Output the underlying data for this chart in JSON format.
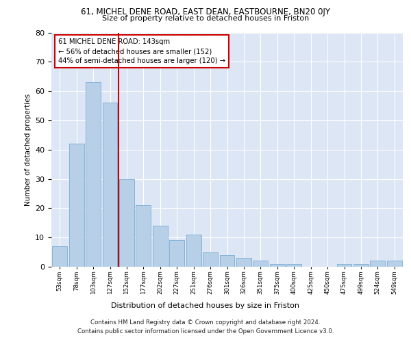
{
  "title1": "61, MICHEL DENE ROAD, EAST DEAN, EASTBOURNE, BN20 0JY",
  "title2": "Size of property relative to detached houses in Friston",
  "xlabel": "Distribution of detached houses by size in Friston",
  "ylabel": "Number of detached properties",
  "categories": [
    "53sqm",
    "78sqm",
    "103sqm",
    "127sqm",
    "152sqm",
    "177sqm",
    "202sqm",
    "227sqm",
    "251sqm",
    "276sqm",
    "301sqm",
    "326sqm",
    "351sqm",
    "375sqm",
    "400sqm",
    "425sqm",
    "450sqm",
    "475sqm",
    "499sqm",
    "524sqm",
    "549sqm"
  ],
  "values": [
    7,
    42,
    63,
    56,
    30,
    21,
    14,
    9,
    11,
    5,
    4,
    3,
    2,
    1,
    1,
    0,
    0,
    1,
    1,
    2,
    2
  ],
  "bar_color": "#b8cfe8",
  "bar_edge_color": "#7aadd4",
  "vline_x": 3.5,
  "vline_color": "#cc0000",
  "annotation_text": "61 MICHEL DENE ROAD: 143sqm\n← 56% of detached houses are smaller (152)\n44% of semi-detached houses are larger (120) →",
  "annotation_box_color": "#ffffff",
  "annotation_box_edge": "#cc0000",
  "footer": "Contains HM Land Registry data © Crown copyright and database right 2024.\nContains public sector information licensed under the Open Government Licence v3.0.",
  "ylim": [
    0,
    80
  ],
  "background_color": "#dce6f5"
}
